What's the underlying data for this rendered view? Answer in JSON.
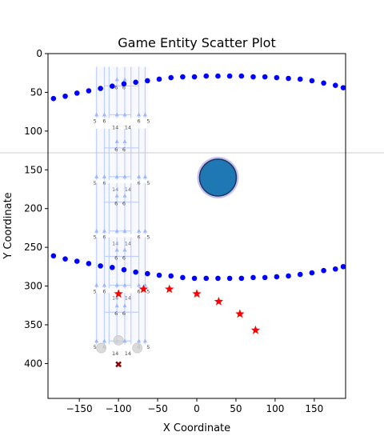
{
  "chart_data": {
    "type": "scatter",
    "title": "Game Entity Scatter Plot",
    "xlabel": "X Coordinate",
    "ylabel": "Y Coordinate",
    "xlim": [
      -190,
      190
    ],
    "ylim": [
      445,
      0
    ],
    "y_inverted": true,
    "xticks": [
      -150,
      -100,
      -50,
      0,
      50,
      100,
      150
    ],
    "yticks": [
      0,
      50,
      100,
      150,
      200,
      250,
      300,
      350,
      400
    ],
    "grid": false,
    "series": [
      {
        "marker": "circle",
        "color": "#0000ff",
        "points": [
          [
            -183,
            58
          ],
          [
            -168,
            55
          ],
          [
            -153,
            51
          ],
          [
            -138,
            48
          ],
          [
            -123,
            45
          ],
          [
            -108,
            42
          ],
          [
            -93,
            39
          ],
          [
            -78,
            37
          ],
          [
            -63,
            35
          ],
          [
            -48,
            33
          ],
          [
            -33,
            31
          ],
          [
            -18,
            30
          ],
          [
            -3,
            30
          ],
          [
            12,
            29
          ],
          [
            27,
            29
          ],
          [
            42,
            29
          ],
          [
            57,
            29
          ],
          [
            72,
            30
          ],
          [
            87,
            30
          ],
          [
            102,
            31
          ],
          [
            117,
            32
          ],
          [
            132,
            33
          ],
          [
            147,
            35
          ],
          [
            162,
            38
          ],
          [
            177,
            41
          ],
          [
            187,
            44
          ]
        ]
      },
      {
        "marker": "circle",
        "color": "#0000ff",
        "points": [
          [
            -183,
            261
          ],
          [
            -168,
            265
          ],
          [
            -153,
            268
          ],
          [
            -138,
            271
          ],
          [
            -123,
            274
          ],
          [
            -108,
            276
          ],
          [
            -93,
            279
          ],
          [
            -78,
            282
          ],
          [
            -63,
            284
          ],
          [
            -48,
            286
          ],
          [
            -33,
            287
          ],
          [
            -18,
            289
          ],
          [
            -3,
            290
          ],
          [
            12,
            290
          ],
          [
            27,
            290
          ],
          [
            42,
            290
          ],
          [
            57,
            290
          ],
          [
            72,
            289
          ],
          [
            87,
            289
          ],
          [
            102,
            288
          ],
          [
            117,
            287
          ],
          [
            132,
            285
          ],
          [
            147,
            283
          ],
          [
            162,
            280
          ],
          [
            177,
            278
          ],
          [
            187,
            275
          ]
        ]
      },
      {
        "marker": "star",
        "color": "#ff0000",
        "points": [
          [
            -100,
            310
          ],
          [
            -68,
            304
          ],
          [
            -35,
            304
          ],
          [
            0,
            310
          ],
          [
            28,
            320
          ],
          [
            55,
            336
          ],
          [
            75,
            357
          ]
        ]
      },
      {
        "marker": "circle-large",
        "color": "#1f77b4",
        "edgecolor": "#9a8ce8",
        "points": [
          [
            27,
            160
          ]
        ]
      },
      {
        "marker": "circle-faded",
        "color": "#d3d3d3",
        "points": [
          [
            -122,
            380
          ],
          [
            -100,
            370
          ],
          [
            -76,
            380
          ]
        ]
      },
      {
        "marker": "x",
        "color": "#8b0000",
        "points": [
          [
            -100,
            401
          ]
        ]
      }
    ],
    "grid_overlays": [
      {
        "y": 50,
        "labels": {
          "outer": "5",
          "inner": "6",
          "bottom": "14",
          "top_center": "6"
        }
      },
      {
        "y": 130,
        "labels": {
          "outer": "5",
          "inner": "6",
          "bottom": "14",
          "top_center": "6"
        }
      },
      {
        "y": 200,
        "labels": {
          "outer": "5",
          "inner": "6",
          "bottom": "14",
          "top_center": "6"
        }
      },
      {
        "y": 270,
        "labels": {
          "outer": "5",
          "inner": "6",
          "bottom": "14",
          "top_center": "6"
        }
      },
      {
        "y": 342,
        "labels": {
          "outer": "5",
          "inner": "6",
          "bottom": "14",
          "top_center": "6"
        }
      }
    ],
    "horizontal_line_y": 128
  }
}
